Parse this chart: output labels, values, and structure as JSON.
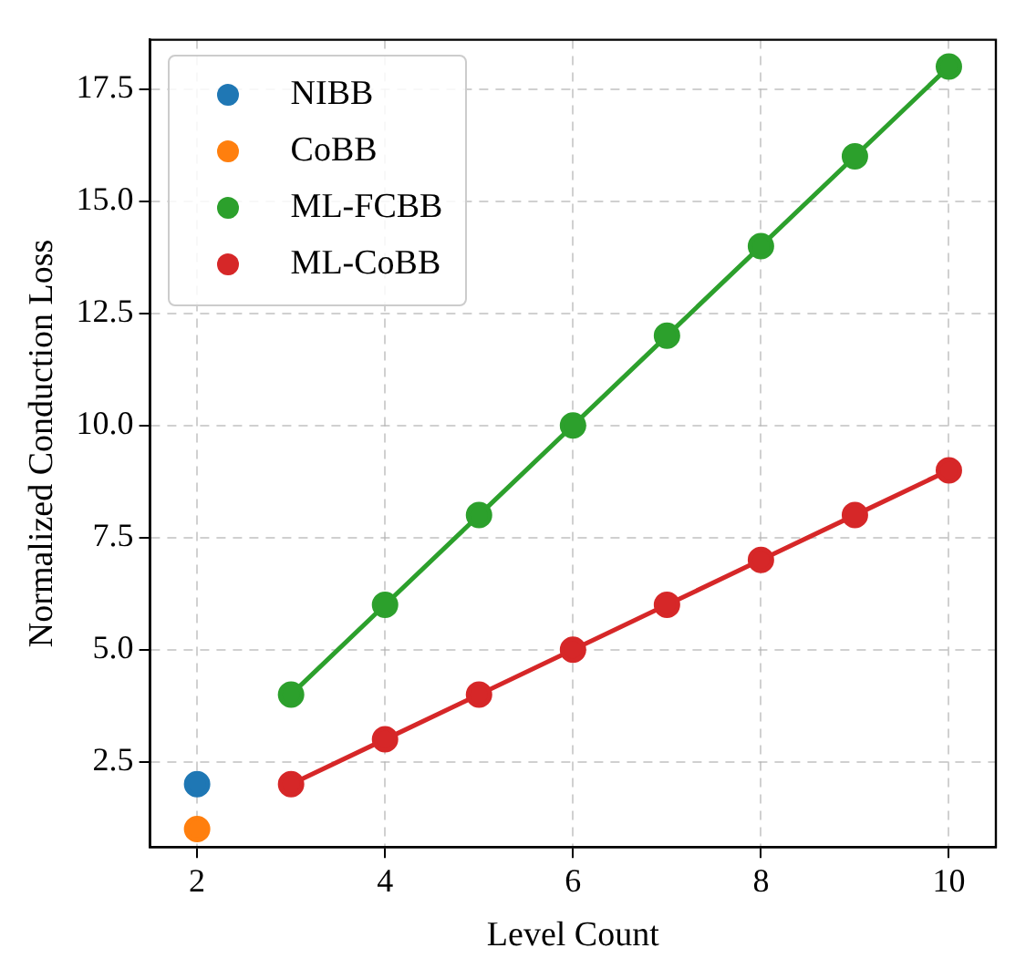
{
  "chart_data": {
    "type": "line",
    "xlabel": "Level Count",
    "ylabel": "Normalized Conduction Loss",
    "xlim": [
      1.5,
      10.5
    ],
    "ylim": [
      0.6,
      18.6
    ],
    "xticks": [
      2,
      4,
      6,
      8,
      10
    ],
    "yticks": [
      2.5,
      {
        "value": 5,
        "label": "5.0"
      },
      7.5,
      {
        "value": 10,
        "label": "10.0"
      },
      12.5,
      {
        "value": 15,
        "label": "15.0"
      },
      17.5
    ],
    "grid": true,
    "legend": "top left",
    "marker": "circle",
    "series": [
      {
        "name": "NIBB",
        "type": "scatter",
        "color": "#1f77b4",
        "x": [
          2
        ],
        "values": [
          2
        ]
      },
      {
        "name": "CoBB",
        "type": "scatter",
        "color": "#ff7f0e",
        "x": [
          2
        ],
        "values": [
          1
        ]
      },
      {
        "name": "ML-FCBB",
        "color": "#2ca02c",
        "x": [
          3,
          4,
          5,
          6,
          7,
          8,
          9,
          10
        ],
        "values": [
          4,
          6,
          8,
          10,
          12,
          14,
          16,
          18
        ]
      },
      {
        "name": "ML-CoBB",
        "color": "#d62728",
        "x": [
          3,
          4,
          5,
          6,
          7,
          8,
          9,
          10
        ],
        "values": [
          2,
          3,
          4,
          5,
          6,
          7,
          8,
          9
        ]
      }
    ]
  }
}
